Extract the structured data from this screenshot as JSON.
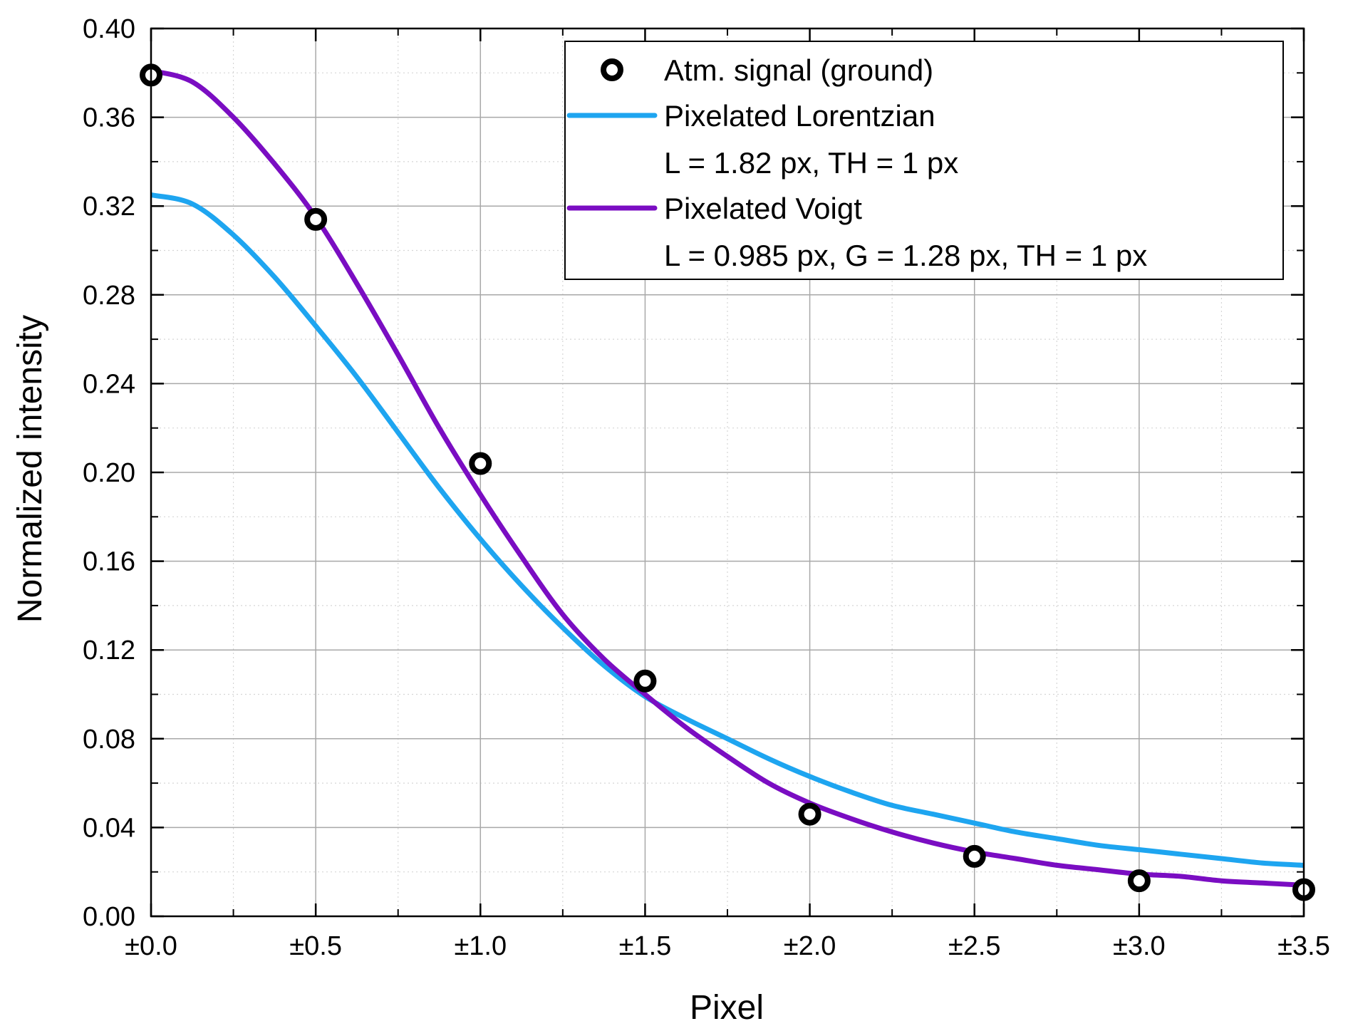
{
  "chart_data": {
    "type": "line",
    "title": "",
    "xlabel": "Pixel",
    "ylabel": "Normalized intensity",
    "xlim": [
      0,
      3.5
    ],
    "ylim": [
      0,
      0.4
    ],
    "x_ticks": [
      0,
      0.5,
      1.0,
      1.5,
      2.0,
      2.5,
      3.0,
      3.5
    ],
    "x_tick_labels": [
      "±0.0",
      "±0.5",
      "±1.0",
      "±1.5",
      "±2.0",
      "±2.5",
      "±3.0",
      "±3.5"
    ],
    "y_ticks": [
      0,
      0.04,
      0.08,
      0.12,
      0.16,
      0.2,
      0.24,
      0.28,
      0.32,
      0.36,
      0.4
    ],
    "y_tick_labels": [
      "0.00",
      "0.04",
      "0.08",
      "0.12",
      "0.16",
      "0.20",
      "0.24",
      "0.28",
      "0.32",
      "0.36",
      "0.40"
    ],
    "grid": true,
    "minor_grid": true,
    "legend_position": "top-right",
    "series": [
      {
        "name": "Atm. signal (ground)",
        "type": "scatter",
        "color": "#000000",
        "marker": "ring",
        "x": [
          0,
          0.5,
          1.0,
          1.5,
          2.0,
          2.5,
          3.0,
          3.5
        ],
        "y": [
          0.379,
          0.314,
          0.204,
          0.106,
          0.046,
          0.027,
          0.016,
          0.012
        ]
      },
      {
        "name": "Pixelated Lorentzian",
        "params": "L = 1.82 px, TH = 1 px",
        "type": "line",
        "color": "#1ea5f0",
        "x": [
          0,
          0.125,
          0.25,
          0.375,
          0.5,
          0.625,
          0.75,
          0.875,
          1.0,
          1.125,
          1.25,
          1.375,
          1.5,
          1.625,
          1.75,
          1.875,
          2.0,
          2.125,
          2.25,
          2.375,
          2.5,
          2.625,
          2.75,
          2.875,
          3.0,
          3.125,
          3.25,
          3.375,
          3.5
        ],
        "y": [
          0.325,
          0.321,
          0.307,
          0.288,
          0.266,
          0.243,
          0.218,
          0.193,
          0.17,
          0.149,
          0.13,
          0.113,
          0.099,
          0.089,
          0.08,
          0.071,
          0.063,
          0.056,
          0.05,
          0.046,
          0.042,
          0.038,
          0.035,
          0.032,
          0.03,
          0.028,
          0.026,
          0.024,
          0.023
        ]
      },
      {
        "name": "Pixelated Voigt",
        "params": "L = 0.985 px, G = 1.28 px, TH = 1 px",
        "type": "line",
        "color": "#7a0dc2",
        "x": [
          0,
          0.125,
          0.25,
          0.375,
          0.5,
          0.625,
          0.75,
          0.875,
          1.0,
          1.125,
          1.25,
          1.375,
          1.5,
          1.625,
          1.75,
          1.875,
          2.0,
          2.125,
          2.25,
          2.375,
          2.5,
          2.625,
          2.75,
          2.875,
          3.0,
          3.125,
          3.25,
          3.375,
          3.5
        ],
        "y": [
          0.381,
          0.376,
          0.36,
          0.339,
          0.315,
          0.285,
          0.253,
          0.22,
          0.19,
          0.162,
          0.136,
          0.116,
          0.1,
          0.085,
          0.072,
          0.06,
          0.051,
          0.044,
          0.038,
          0.033,
          0.029,
          0.026,
          0.023,
          0.021,
          0.019,
          0.018,
          0.016,
          0.015,
          0.014
        ]
      }
    ]
  }
}
